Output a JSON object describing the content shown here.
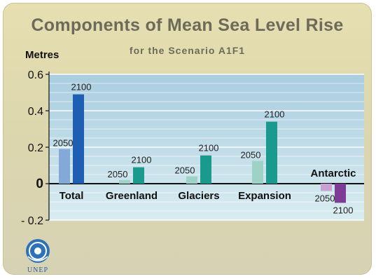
{
  "chart_data": {
    "type": "bar",
    "title": "Components of Mean Sea Level Rise",
    "subtitle": "for the Scenario A1F1",
    "ylabel": "Metres",
    "xlabel": "",
    "ylim": [
      -0.2,
      0.6
    ],
    "yticks": [
      {
        "value": 0.6,
        "label": "0.6"
      },
      {
        "value": 0.4,
        "label": "0.4"
      },
      {
        "value": 0.2,
        "label": "0.2"
      },
      {
        "value": 0,
        "label": "0"
      },
      {
        "value": -0.2,
        "label": "- 0.2"
      }
    ],
    "grid": true,
    "categories": [
      "Total",
      "Greenland",
      "Glaciers",
      "Expansion",
      "Antarctic"
    ],
    "series": [
      {
        "name": "2050",
        "values": [
          0.19,
          0.02,
          0.04,
          0.125,
          -0.04
        ]
      },
      {
        "name": "2100",
        "values": [
          0.49,
          0.09,
          0.155,
          0.34,
          -0.105
        ]
      }
    ]
  },
  "colors": {
    "plot_top": "#a9cde0",
    "plot_bottom": "#d9ecf1",
    "gridline": "#ffffff",
    "axis": "#111111",
    "total_2050": "#82a9d8",
    "total_2100": "#1e5fb4",
    "mid_2050": "#9fd2c6",
    "mid_2100": "#1a9a8e",
    "antarctic_2050": "#c9a0d2",
    "antarctic_2100": "#7f3c96"
  },
  "logo_text": "UNEP",
  "logo_icon": "un-emblem-icon"
}
